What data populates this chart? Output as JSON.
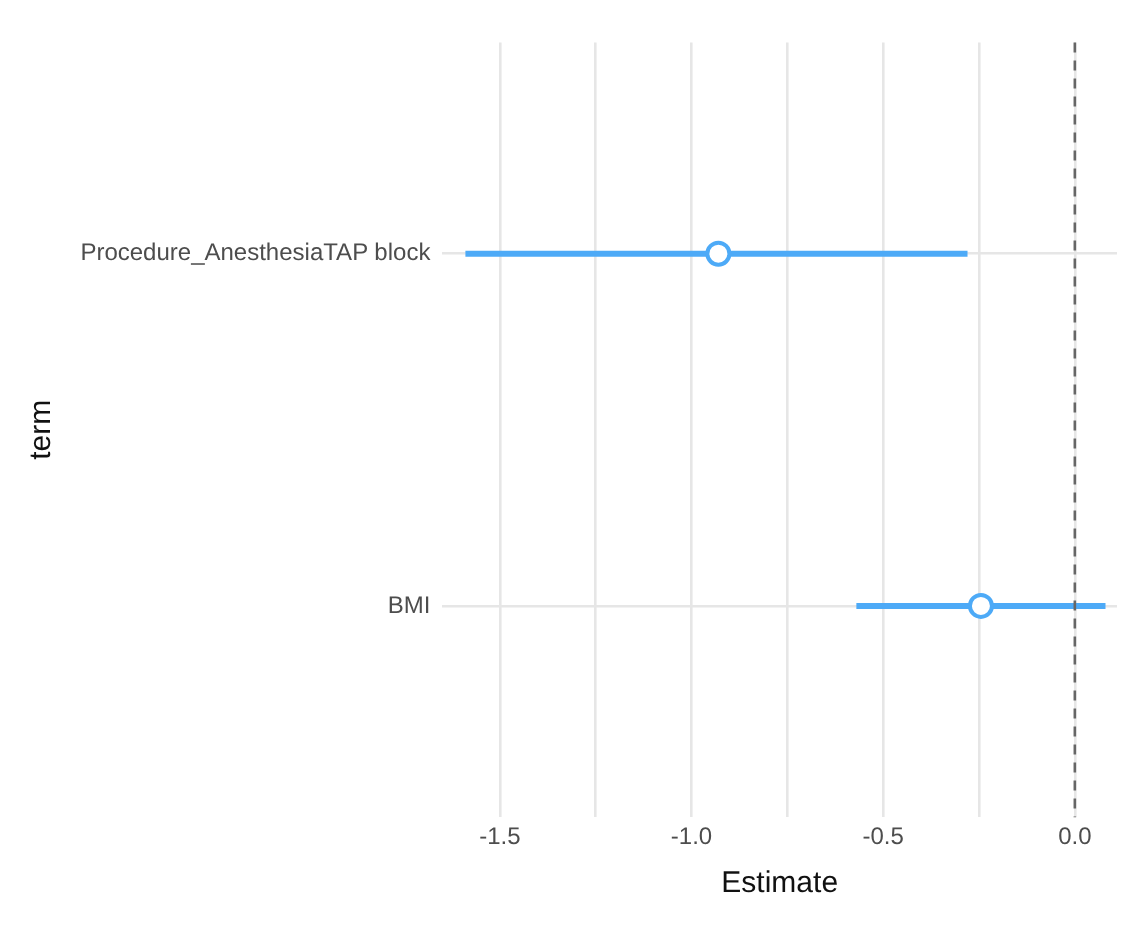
{
  "chart_data": {
    "type": "scatter",
    "orientation": "horizontal",
    "xlabel": "Estimate",
    "ylabel": "term",
    "categories": [
      "Procedure_AnesthesiaTAP block",
      "BMI"
    ],
    "values": [
      -0.93,
      -0.245
    ],
    "errors": [
      [
        -1.59,
        -0.28
      ],
      [
        -0.57,
        0.08
      ]
    ],
    "color": "#4daaf7",
    "marker": "circle",
    "xlim": [
      -1.65,
      0.11
    ],
    "xticks": [
      -1.5,
      {
        "value": -1.25,
        "label": null
      },
      {
        "value": -1,
        "label": "-1.0"
      },
      {
        "value": -0.75,
        "label": null
      },
      -0.5,
      {
        "value": -0.25,
        "label": null
      },
      {
        "value": 0,
        "label": "0.0"
      }
    ],
    "grid": true,
    "ref_lines": [
      {
        "axis": "x",
        "value": 0,
        "line_style": "dashed",
        "color": "#666666"
      }
    ]
  }
}
